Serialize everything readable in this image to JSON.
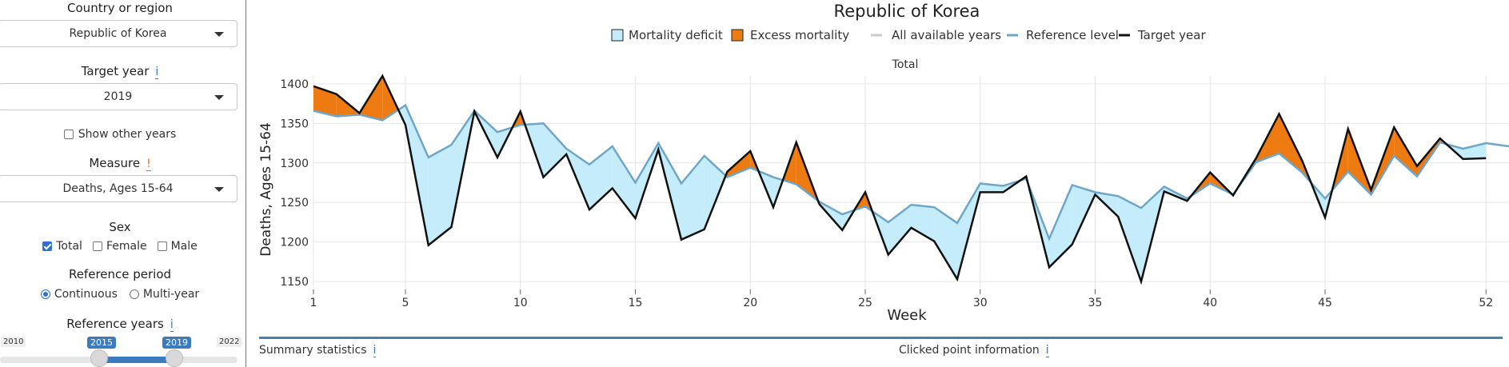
{
  "sidebar": {
    "country_label": "Country or region",
    "country_value": "Republic of Korea",
    "target_year_label": "Target year",
    "target_year_info": "i",
    "target_year_value": "2019",
    "show_other_years": "Show other years",
    "measure_label": "Measure",
    "measure_warn": "!",
    "measure_value": "Deaths, Ages 15-64",
    "sex_label": "Sex",
    "sex_options": [
      "Total",
      "Female",
      "Male"
    ],
    "ref_period_label": "Reference period",
    "ref_period_options": [
      "Continuous",
      "Multi-year"
    ],
    "ref_years_label": "Reference years",
    "ref_years_info": "i",
    "slider": {
      "min": "2010",
      "max": "2022",
      "from": "2015",
      "to": "2019"
    }
  },
  "bottom": {
    "summary": "Summary statistics",
    "summary_info": "i",
    "clicked": "Clicked point information",
    "clicked_info": "i"
  },
  "chart_data": {
    "type": "area",
    "title": "Republic of Korea",
    "subtitle": "Total",
    "xlabel": "Week",
    "ylabel": "Deaths, Ages 15-64",
    "xlim": [
      1,
      53
    ],
    "ylim": [
      1140,
      1410
    ],
    "xticks": [
      1,
      5,
      10,
      15,
      20,
      25,
      30,
      35,
      40,
      45,
      52
    ],
    "yticks": [
      1150,
      1200,
      1250,
      1300,
      1350,
      1400
    ],
    "grid": true,
    "legend_position": "top",
    "legend": [
      "Mortality deficit",
      "Excess mortality",
      "All available years",
      "Reference level",
      "Target year"
    ],
    "colors": {
      "deficit": "#c4ecfb",
      "excess": "#ee7a12",
      "reference": "#6ea6c8",
      "target": "#111111",
      "all_years": "#cccccc"
    },
    "series": [
      {
        "name": "Reference level",
        "x": [
          1,
          2,
          3,
          4,
          5,
          6,
          7,
          8,
          9,
          10,
          11,
          12,
          13,
          14,
          15,
          16,
          17,
          18,
          19,
          20,
          21,
          22,
          23,
          24,
          25,
          26,
          27,
          28,
          29,
          30,
          31,
          32,
          33,
          34,
          35,
          36,
          37,
          38,
          39,
          40,
          41,
          42,
          43,
          44,
          45,
          46,
          47,
          48,
          49,
          50,
          51,
          52,
          53
        ],
        "values": [
          1366,
          1359,
          1361,
          1354,
          1373,
          1307,
          1323,
          1366,
          1339,
          1348,
          1350,
          1318,
          1298,
          1321,
          1275,
          1325,
          1274,
          1309,
          1282,
          1294,
          1282,
          1273,
          1251,
          1235,
          1245,
          1225,
          1247,
          1244,
          1224,
          1274,
          1271,
          1280,
          1204,
          1272,
          1263,
          1258,
          1243,
          1270,
          1255,
          1274,
          1260,
          1301,
          1312,
          1288,
          1255,
          1289,
          1260,
          1309,
          1283,
          1326,
          1318,
          1325,
          1321
        ]
      },
      {
        "name": "Target year",
        "x": [
          1,
          2,
          3,
          4,
          5,
          6,
          7,
          8,
          9,
          10,
          11,
          12,
          13,
          14,
          15,
          16,
          17,
          18,
          19,
          20,
          21,
          22,
          23,
          24,
          25,
          26,
          27,
          28,
          29,
          30,
          31,
          32,
          33,
          34,
          35,
          36,
          37,
          38,
          39,
          40,
          41,
          42,
          43,
          44,
          45,
          46,
          47,
          48,
          49,
          50,
          51,
          52
        ],
        "values": [
          1397,
          1387,
          1363,
          1410,
          1348,
          1196,
          1219,
          1365,
          1307,
          1365,
          1282,
          1311,
          1241,
          1268,
          1230,
          1317,
          1203,
          1216,
          1289,
          1315,
          1244,
          1326,
          1248,
          1215,
          1263,
          1184,
          1218,
          1201,
          1153,
          1263,
          1263,
          1283,
          1168,
          1197,
          1260,
          1232,
          1150,
          1264,
          1252,
          1288,
          1259,
          1306,
          1362,
          1303,
          1231,
          1343,
          1266,
          1345,
          1296,
          1331,
          1305,
          1306
        ]
      }
    ]
  }
}
